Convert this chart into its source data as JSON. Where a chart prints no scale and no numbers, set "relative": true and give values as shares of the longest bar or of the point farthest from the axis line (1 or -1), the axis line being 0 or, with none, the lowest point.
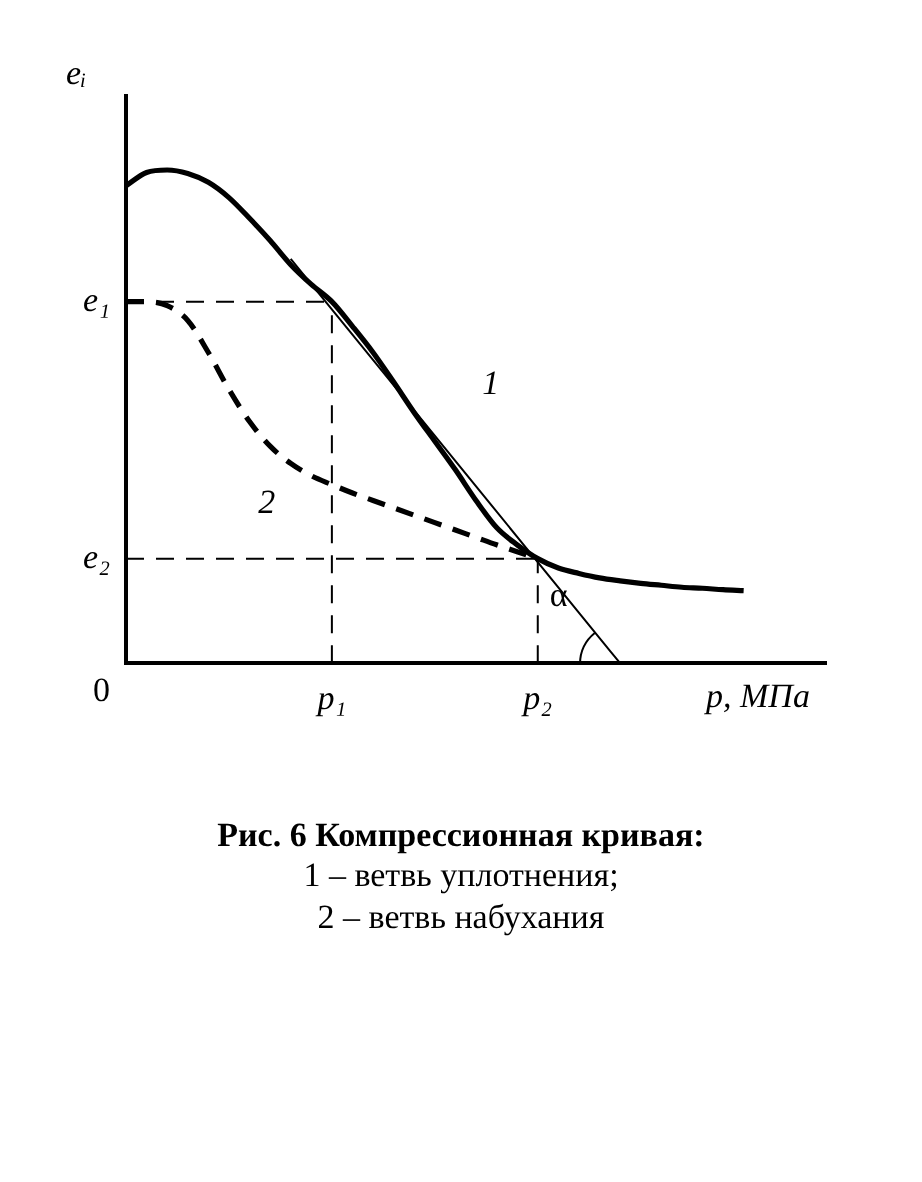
{
  "chart_data": {
    "type": "line",
    "relative": true,
    "title": "Рис. 6  Компрессионная кривая:",
    "xlabel": "p, МПа",
    "ylabel": "eᵢ",
    "marker": "none",
    "legend": false,
    "grid": false,
    "categories": [
      null,
      null,
      null,
      null,
      null,
      null,
      null,
      null,
      null,
      null,
      "p₁",
      null,
      null,
      null,
      null,
      null,
      null,
      null,
      null,
      null,
      "p₂",
      null,
      null,
      null,
      null,
      null,
      null,
      null,
      null,
      null,
      null,
      null,
      null,
      null,
      null
    ],
    "series": [
      {
        "name": "1",
        "color": "#000000",
        "line_style": "solid",
        "values": [
          0.968,
          0.995,
          1.0,
          0.993,
          0.975,
          0.944,
          0.902,
          0.857,
          0.808,
          0.768,
          0.733,
          0.683,
          0.63,
          0.57,
          0.508,
          0.45,
          0.392,
          0.33,
          0.275,
          0.24,
          0.212,
          0.193,
          0.182,
          0.173,
          0.167,
          0.162,
          0.158,
          0.154,
          0.152,
          0.149,
          0.147,
          null,
          null,
          null,
          null
        ]
      },
      {
        "name": "2",
        "color": "#000000",
        "line_style": "dashed",
        "values": [
          0.733,
          0.733,
          0.725,
          0.695,
          0.63,
          0.555,
          0.49,
          0.44,
          0.405,
          0.38,
          0.362,
          0.345,
          0.33,
          0.315,
          0.3,
          0.285,
          0.27,
          0.255,
          0.24,
          0.226,
          0.212,
          null,
          null,
          null,
          null,
          null,
          null,
          null,
          null,
          null,
          null,
          null,
          null,
          null,
          null
        ]
      },
      {
        "type": "line",
        "color": "#000000",
        "line_style": "solid",
        "values": [
          null,
          null,
          null,
          null,
          null,
          null,
          null,
          null,
          0.82,
          null,
          null,
          null,
          null,
          null,
          null,
          null,
          null,
          null,
          null,
          null,
          null,
          null,
          null,
          null,
          0,
          null,
          null,
          null,
          null,
          null,
          null,
          null,
          null,
          null,
          null
        ]
      }
    ],
    "ref_lines": [
      {
        "axis": "y",
        "value": 0.733,
        "label": "e₁",
        "line_style": "dashed"
      },
      {
        "axis": "y",
        "value": 0.212,
        "label": "e₂",
        "line_style": "dashed"
      },
      {
        "axis": "x",
        "value": "p₁",
        "line_style": "dashed"
      },
      {
        "axis": "x",
        "value": "p₂",
        "line_style": "dashed"
      }
    ],
    "annotations": [
      "0",
      {
        "text": "α",
        "x": "p₂",
        "y": 0.1
      },
      "1 – ветвь уплотнения;",
      "2 – ветвь набухания"
    ]
  }
}
